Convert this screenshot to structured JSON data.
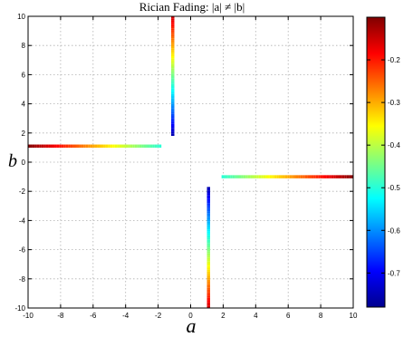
{
  "chart_data": {
    "type": "line",
    "title": "Rician Fading: |a| ≠ |b|",
    "xlabel": "a",
    "ylabel": "b",
    "xlim": [
      -10,
      10
    ],
    "ylim": [
      -10,
      10
    ],
    "xticks": [
      -10,
      -8,
      -6,
      -4,
      -2,
      0,
      2,
      4,
      6,
      8,
      10
    ],
    "yticks": [
      -10,
      -8,
      -6,
      -4,
      -2,
      0,
      2,
      4,
      6,
      8,
      10
    ],
    "grid": true,
    "colorbar": {
      "range": [
        -0.78,
        -0.1
      ],
      "ticks": [
        -0.7,
        -0.6,
        -0.5,
        -0.4,
        -0.3,
        -0.2
      ],
      "colormap": "jet"
    },
    "series": [
      {
        "x": [
          -10,
          -1.8
        ],
        "y": [
          1.1,
          1.1
        ],
        "c": [
          -0.1,
          -0.5
        ]
      },
      {
        "x": [
          -1.1,
          -1.1
        ],
        "y": [
          10,
          1.8
        ],
        "c": [
          -0.15,
          -0.75
        ]
      },
      {
        "x": [
          10,
          1.9
        ],
        "y": [
          -1.0,
          -1.0
        ],
        "c": [
          -0.1,
          -0.5
        ]
      },
      {
        "x": [
          1.1,
          1.1
        ],
        "y": [
          -10,
          -1.7
        ],
        "c": [
          -0.15,
          -0.75
        ]
      }
    ]
  }
}
